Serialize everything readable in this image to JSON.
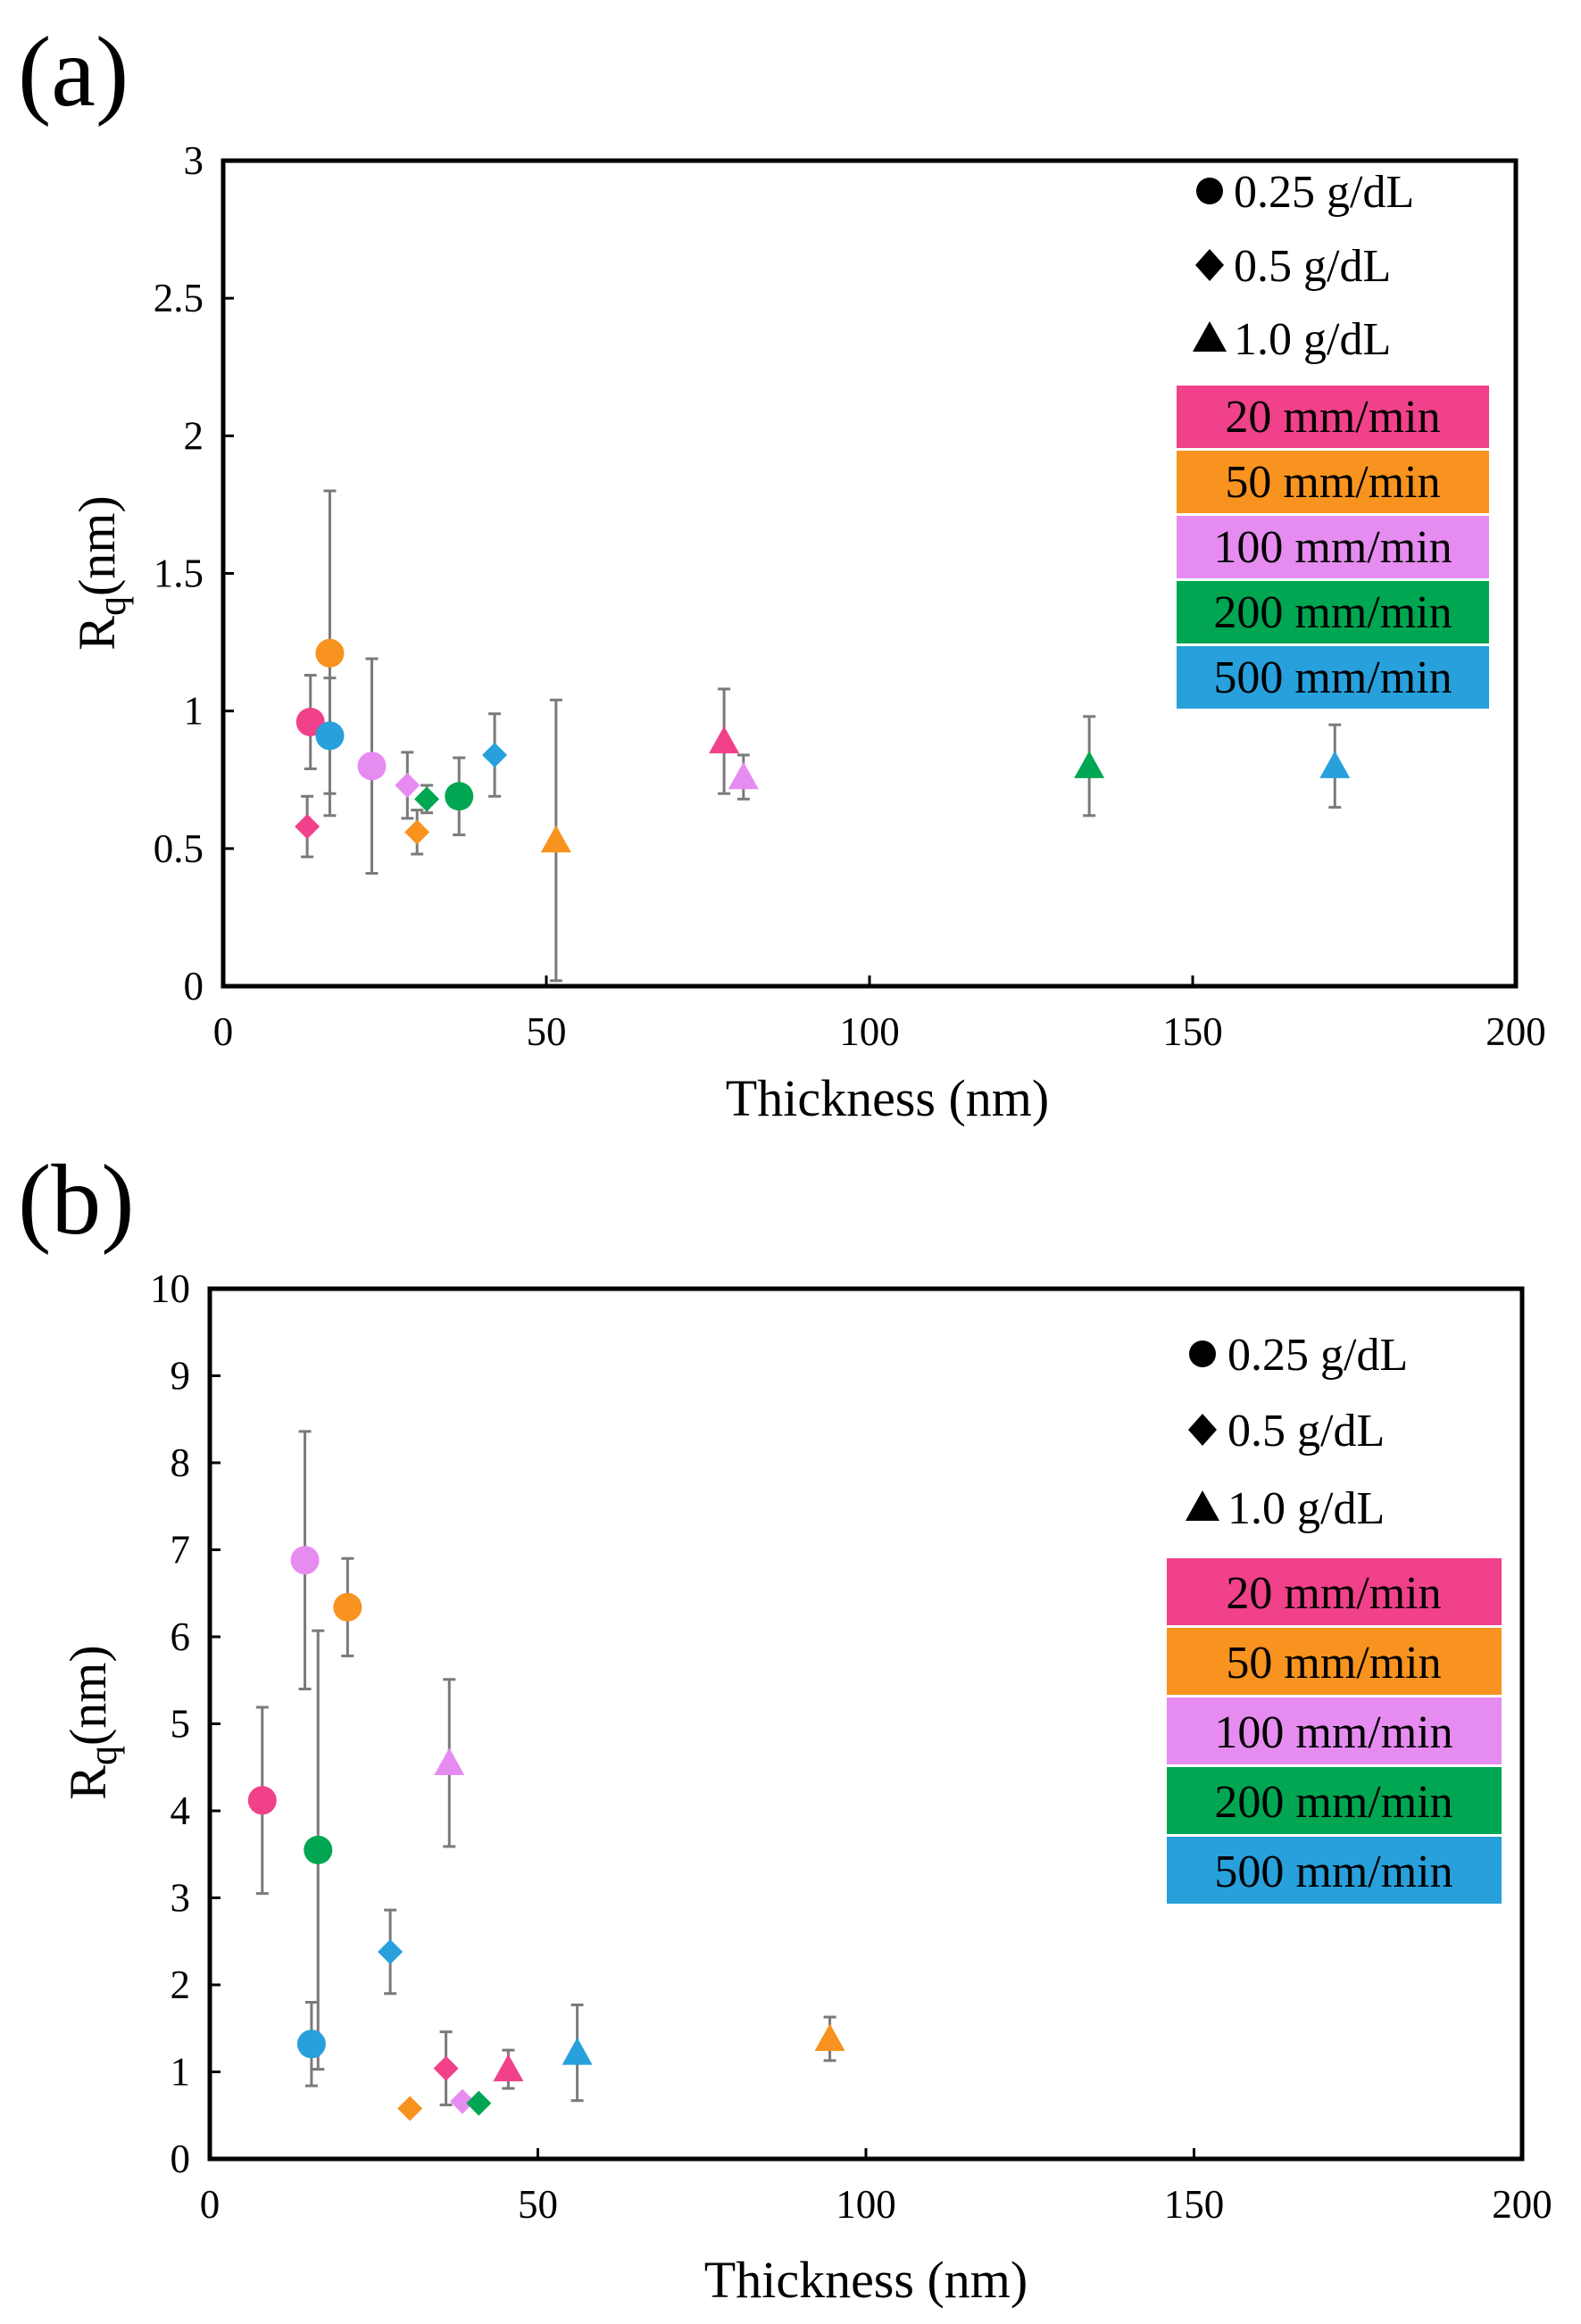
{
  "colors": {
    "20 mm/min": "#f0418a",
    "50 mm/min": "#f7931e",
    "100 mm/min": "#e68cf0",
    "200 mm/min": "#00a651",
    "500 mm/min": "#27a0dc"
  },
  "chart_data": [
    {
      "type": "scatter",
      "panel_label": "(a)",
      "xlabel": "Thickness (nm)",
      "ylabel_main": "R",
      "ylabel_sub": "q",
      "ylabel_unit": "(nm)",
      "xlim": [
        0,
        200
      ],
      "ylim": [
        0,
        3
      ],
      "xticks": [
        0,
        50,
        100,
        150,
        200
      ],
      "xtick_labels": [
        "0",
        "50",
        "100",
        "150",
        "200"
      ],
      "yticks": [
        0,
        0.5,
        1,
        1.5,
        2,
        2.5,
        3
      ],
      "ytick_labels": [
        "0",
        "0.5",
        "1",
        "1.5",
        "2",
        "2.5",
        "3"
      ],
      "grid": false,
      "legend_position": "top-right",
      "marker_legend": [
        {
          "marker": "circle",
          "label": "0.25 g/dL"
        },
        {
          "marker": "diamond",
          "label": "0.5 g/dL"
        },
        {
          "marker": "triangle",
          "label": "1.0 g/dL"
        }
      ],
      "color_legend": [
        "20 mm/min",
        "50 mm/min",
        "100 mm/min",
        "200 mm/min",
        "500 mm/min"
      ],
      "points": [
        {
          "speed": "20 mm/min",
          "marker": "circle",
          "x": 13.5,
          "y": 0.96,
          "err": 0.17
        },
        {
          "speed": "50 mm/min",
          "marker": "circle",
          "x": 16.5,
          "y": 1.21,
          "err": 0.59
        },
        {
          "speed": "500 mm/min",
          "marker": "circle",
          "x": 16.5,
          "y": 0.91,
          "err": 0.21
        },
        {
          "speed": "100 mm/min",
          "marker": "circle",
          "x": 23.0,
          "y": 0.8,
          "err": 0.39
        },
        {
          "speed": "200 mm/min",
          "marker": "circle",
          "x": 36.5,
          "y": 0.69,
          "err": 0.14
        },
        {
          "speed": "20 mm/min",
          "marker": "diamond",
          "x": 13.0,
          "y": 0.58,
          "err": 0.11
        },
        {
          "speed": "100 mm/min",
          "marker": "diamond",
          "x": 28.5,
          "y": 0.73,
          "err": 0.12
        },
        {
          "speed": "50 mm/min",
          "marker": "diamond",
          "x": 30.0,
          "y": 0.56,
          "err": 0.08
        },
        {
          "speed": "200 mm/min",
          "marker": "diamond",
          "x": 31.5,
          "y": 0.68,
          "err": 0.05
        },
        {
          "speed": "500 mm/min",
          "marker": "diamond",
          "x": 42.0,
          "y": 0.84,
          "err": 0.15
        },
        {
          "speed": "50 mm/min",
          "marker": "triangle",
          "x": 51.5,
          "y": 0.53,
          "err": 0.51
        },
        {
          "speed": "20 mm/min",
          "marker": "triangle",
          "x": 77.5,
          "y": 0.89,
          "err": 0.19
        },
        {
          "speed": "100 mm/min",
          "marker": "triangle",
          "x": 80.5,
          "y": 0.76,
          "err": 0.08
        },
        {
          "speed": "200 mm/min",
          "marker": "triangle",
          "x": 134.0,
          "y": 0.8,
          "err": 0.18
        },
        {
          "speed": "500 mm/min",
          "marker": "triangle",
          "x": 172.0,
          "y": 0.8,
          "err": 0.15
        }
      ]
    },
    {
      "type": "scatter",
      "panel_label": "(b)",
      "xlabel": "Thickness (nm)",
      "ylabel_main": "R",
      "ylabel_sub": "q",
      "ylabel_unit": "(nm)",
      "xlim": [
        0,
        200
      ],
      "ylim": [
        0,
        10
      ],
      "xticks": [
        0,
        50,
        100,
        150,
        200
      ],
      "xtick_labels": [
        "0",
        "50",
        "100",
        "150",
        "200"
      ],
      "yticks": [
        0,
        1,
        2,
        3,
        4,
        5,
        6,
        7,
        8,
        9,
        10
      ],
      "ytick_labels": [
        "0",
        "1",
        "2",
        "3",
        "4",
        "5",
        "6",
        "7",
        "8",
        "9",
        "10"
      ],
      "grid": false,
      "legend_position": "top-right",
      "marker_legend": [
        {
          "marker": "circle",
          "label": "0.25 g/dL"
        },
        {
          "marker": "diamond",
          "label": "0.5 g/dL"
        },
        {
          "marker": "triangle",
          "label": "1.0 g/dL"
        }
      ],
      "color_legend": [
        "20 mm/min",
        "50 mm/min",
        "100 mm/min",
        "200 mm/min",
        "500 mm/min"
      ],
      "points": [
        {
          "speed": "20 mm/min",
          "marker": "circle",
          "x": 8.0,
          "y": 4.12,
          "err": 1.07
        },
        {
          "speed": "100 mm/min",
          "marker": "circle",
          "x": 14.5,
          "y": 6.88,
          "err": 1.48
        },
        {
          "speed": "200 mm/min",
          "marker": "circle",
          "x": 16.5,
          "y": 3.55,
          "err": 2.52
        },
        {
          "speed": "500 mm/min",
          "marker": "circle",
          "x": 15.5,
          "y": 1.32,
          "err": 0.48
        },
        {
          "speed": "50 mm/min",
          "marker": "circle",
          "x": 21.0,
          "y": 6.34,
          "err": 0.56
        },
        {
          "speed": "500 mm/min",
          "marker": "diamond",
          "x": 27.5,
          "y": 2.38,
          "err": 0.48
        },
        {
          "speed": "50 mm/min",
          "marker": "diamond",
          "x": 30.5,
          "y": 0.58,
          "err": 0.05
        },
        {
          "speed": "20 mm/min",
          "marker": "diamond",
          "x": 36.0,
          "y": 1.04,
          "err": 0.42
        },
        {
          "speed": "100 mm/min",
          "marker": "diamond",
          "x": 38.5,
          "y": 0.66,
          "err": 0.05
        },
        {
          "speed": "200 mm/min",
          "marker": "diamond",
          "x": 41.0,
          "y": 0.64,
          "err": 0.05
        },
        {
          "speed": "100 mm/min",
          "marker": "triangle",
          "x": 36.5,
          "y": 4.55,
          "err": 0.96
        },
        {
          "speed": "20 mm/min",
          "marker": "triangle",
          "x": 45.5,
          "y": 1.03,
          "err": 0.22
        },
        {
          "speed": "500 mm/min",
          "marker": "triangle",
          "x": 56.0,
          "y": 1.22,
          "err": 0.55
        },
        {
          "speed": "50 mm/min",
          "marker": "triangle",
          "x": 94.5,
          "y": 1.38,
          "err": 0.25
        }
      ]
    }
  ]
}
